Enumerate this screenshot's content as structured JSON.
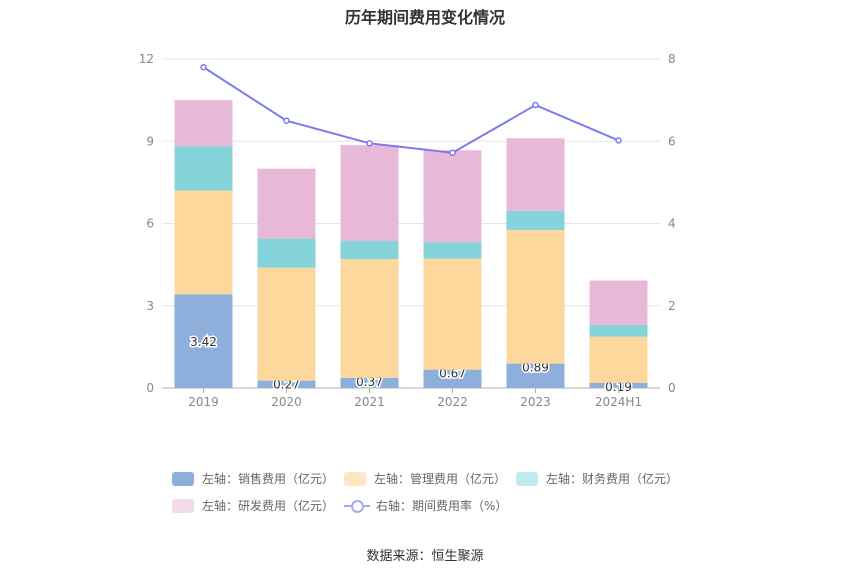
{
  "chart_data": {
    "type": "bar",
    "title": "历年期间费用变化情况",
    "categories": [
      "2019",
      "2020",
      "2021",
      "2022",
      "2023",
      "2024H1"
    ],
    "series": [
      {
        "name": "左轴：销售费用（亿元）",
        "axis": "left",
        "color": "#8eaedb",
        "legend_color": "#8eaedb",
        "values": [
          3.42,
          0.27,
          0.37,
          0.67,
          0.89,
          0.19
        ],
        "labels": [
          "3.42",
          "0.27",
          "0.37",
          "0.67",
          "0.89",
          "0.19"
        ]
      },
      {
        "name": "左轴：管理费用（亿元）",
        "axis": "left",
        "color": "#fdd89c",
        "legend_color": "#fde6c4",
        "values": [
          3.78,
          4.12,
          4.33,
          4.05,
          4.87,
          1.68
        ]
      },
      {
        "name": "左轴：财务费用（亿元）",
        "axis": "left",
        "color": "#85d4d9",
        "legend_color": "#c0ebee",
        "values": [
          1.62,
          1.06,
          0.66,
          0.6,
          0.7,
          0.43
        ]
      },
      {
        "name": "左轴：研发费用（亿元）",
        "axis": "left",
        "color": "#e8b8d9",
        "legend_color": "#f3dbec",
        "values": [
          1.68,
          2.55,
          3.5,
          3.35,
          2.65,
          1.62
        ]
      },
      {
        "name": "右轴：期间费用率（%）",
        "axis": "right",
        "type": "line",
        "color": "#7b7bf0",
        "values": [
          7.8,
          6.5,
          5.95,
          5.72,
          6.88,
          6.02
        ]
      }
    ],
    "y_left": {
      "min": 0,
      "max": 12,
      "ticks": [
        "0",
        "3",
        "6",
        "9",
        "12"
      ]
    },
    "y_right": {
      "min": 0,
      "max": 8,
      "ticks": [
        "0",
        "2",
        "4",
        "6",
        "8"
      ]
    },
    "legend_position": "bottom"
  },
  "source": "数据来源：恒生聚源"
}
